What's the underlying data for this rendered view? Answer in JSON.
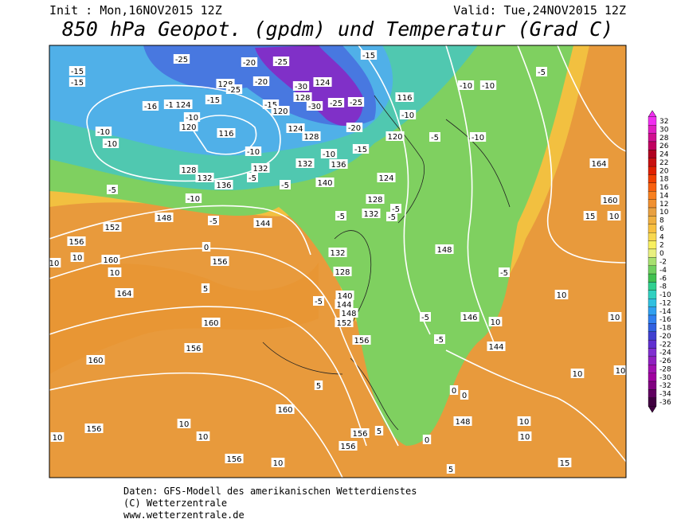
{
  "header": {
    "init": "Init : Mon,16NOV2015 12Z",
    "valid": "Valid: Tue,24NOV2015 12Z",
    "title": "850 hPa Geopot. (gpdm) und Temperatur (Grad C)"
  },
  "colorbar": {
    "levels": [
      32,
      30,
      28,
      26,
      24,
      22,
      20,
      18,
      16,
      14,
      12,
      10,
      8,
      6,
      4,
      2,
      0,
      -2,
      -4,
      -6,
      -8,
      -10,
      -12,
      -14,
      -16,
      -18,
      -20,
      -22,
      -24,
      -26,
      -28,
      -30,
      -32,
      -34,
      -36
    ],
    "colors": [
      "#f030f0",
      "#e020c0",
      "#d01090",
      "#c00060",
      "#b00020",
      "#c81010",
      "#e02000",
      "#f04000",
      "#f86010",
      "#f88020",
      "#f09030",
      "#e8a040",
      "#f0b040",
      "#f8c040",
      "#f8d850",
      "#f8f060",
      "#e8f080",
      "#a8e070",
      "#70d060",
      "#40c050",
      "#30d090",
      "#30d0c0",
      "#30c0e0",
      "#30a0f0",
      "#3080f0",
      "#3060e0",
      "#4040d0",
      "#6030d0",
      "#8030d0",
      "#9020c0",
      "#a010b0",
      "#a000a0",
      "#800080",
      "#600060",
      "#400040"
    ]
  },
  "map": {
    "labels": [
      "-25",
      "-15",
      "-15",
      "-20",
      "-25",
      "-15",
      "128",
      "-25",
      "-20",
      "-30",
      "124",
      "-16",
      "-16",
      "124",
      "-15",
      "-15",
      "120",
      "128",
      "-30",
      "-25",
      "-25",
      "116",
      "-10",
      "-10",
      "-10",
      "-5",
      "-10",
      "-10",
      "-10",
      "120",
      "116",
      "124",
      "128",
      "-20",
      "120",
      "-5",
      "-10",
      "-15",
      "-10",
      "-10",
      "128",
      "132",
      "136",
      "132",
      "-5",
      "-5",
      "132",
      "136",
      "124",
      "140",
      "-5",
      "-10",
      "128",
      "-5",
      "164",
      "160",
      "15",
      "10",
      "148",
      "-5",
      "144",
      "-5",
      "132",
      "-5",
      "152",
      "156",
      "0",
      "156",
      "10",
      "10",
      "160",
      "132",
      "128",
      "148",
      "-5",
      "-5",
      "140",
      "144",
      "148",
      "152",
      "-5",
      "146",
      "10",
      "10",
      "-5",
      "10",
      "5",
      "164",
      "160",
      "156",
      "144",
      "10",
      "156",
      "160",
      "10",
      "10",
      "5",
      "0",
      "0",
      "160",
      "148",
      "10",
      "10",
      "10",
      "10",
      "156",
      "156",
      "5",
      "0",
      "10",
      "156",
      "156",
      "10",
      "5",
      "15"
    ]
  },
  "footer": [
    "Daten: GFS-Modell des amerikanischen Wetterdienstes",
    "(C) Wetterzentrale",
    "www.wetterzentrale.de"
  ]
}
